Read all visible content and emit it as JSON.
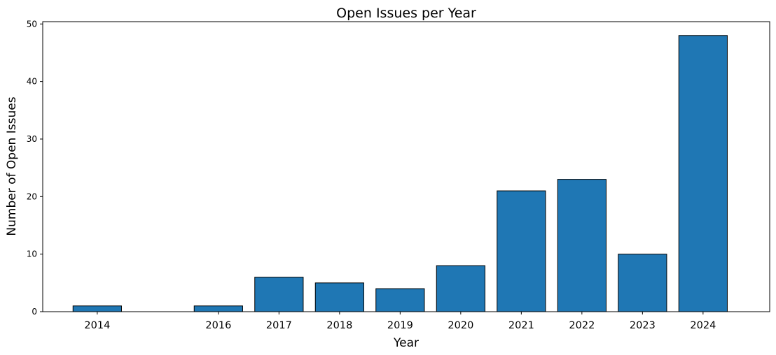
{
  "chart_data": {
    "type": "bar",
    "title": "Open Issues per Year",
    "xlabel": "Year",
    "ylabel": "Number of Open Issues",
    "x": [
      2014,
      2016,
      2017,
      2018,
      2019,
      2020,
      2021,
      2022,
      2023,
      2024
    ],
    "categories": [
      "2014",
      "2016",
      "2017",
      "2018",
      "2019",
      "2020",
      "2021",
      "2022",
      "2023",
      "2024"
    ],
    "values": [
      1,
      1,
      6,
      5,
      4,
      8,
      21,
      23,
      10,
      48
    ],
    "yticks": [
      "0",
      "10",
      "20",
      "30",
      "40",
      "50"
    ],
    "ylim": [
      0,
      50.4
    ],
    "xlim": [
      2013.1,
      2025.1
    ],
    "grid": false,
    "bar_color": "#1f77b4",
    "edge_color": "#000000"
  }
}
